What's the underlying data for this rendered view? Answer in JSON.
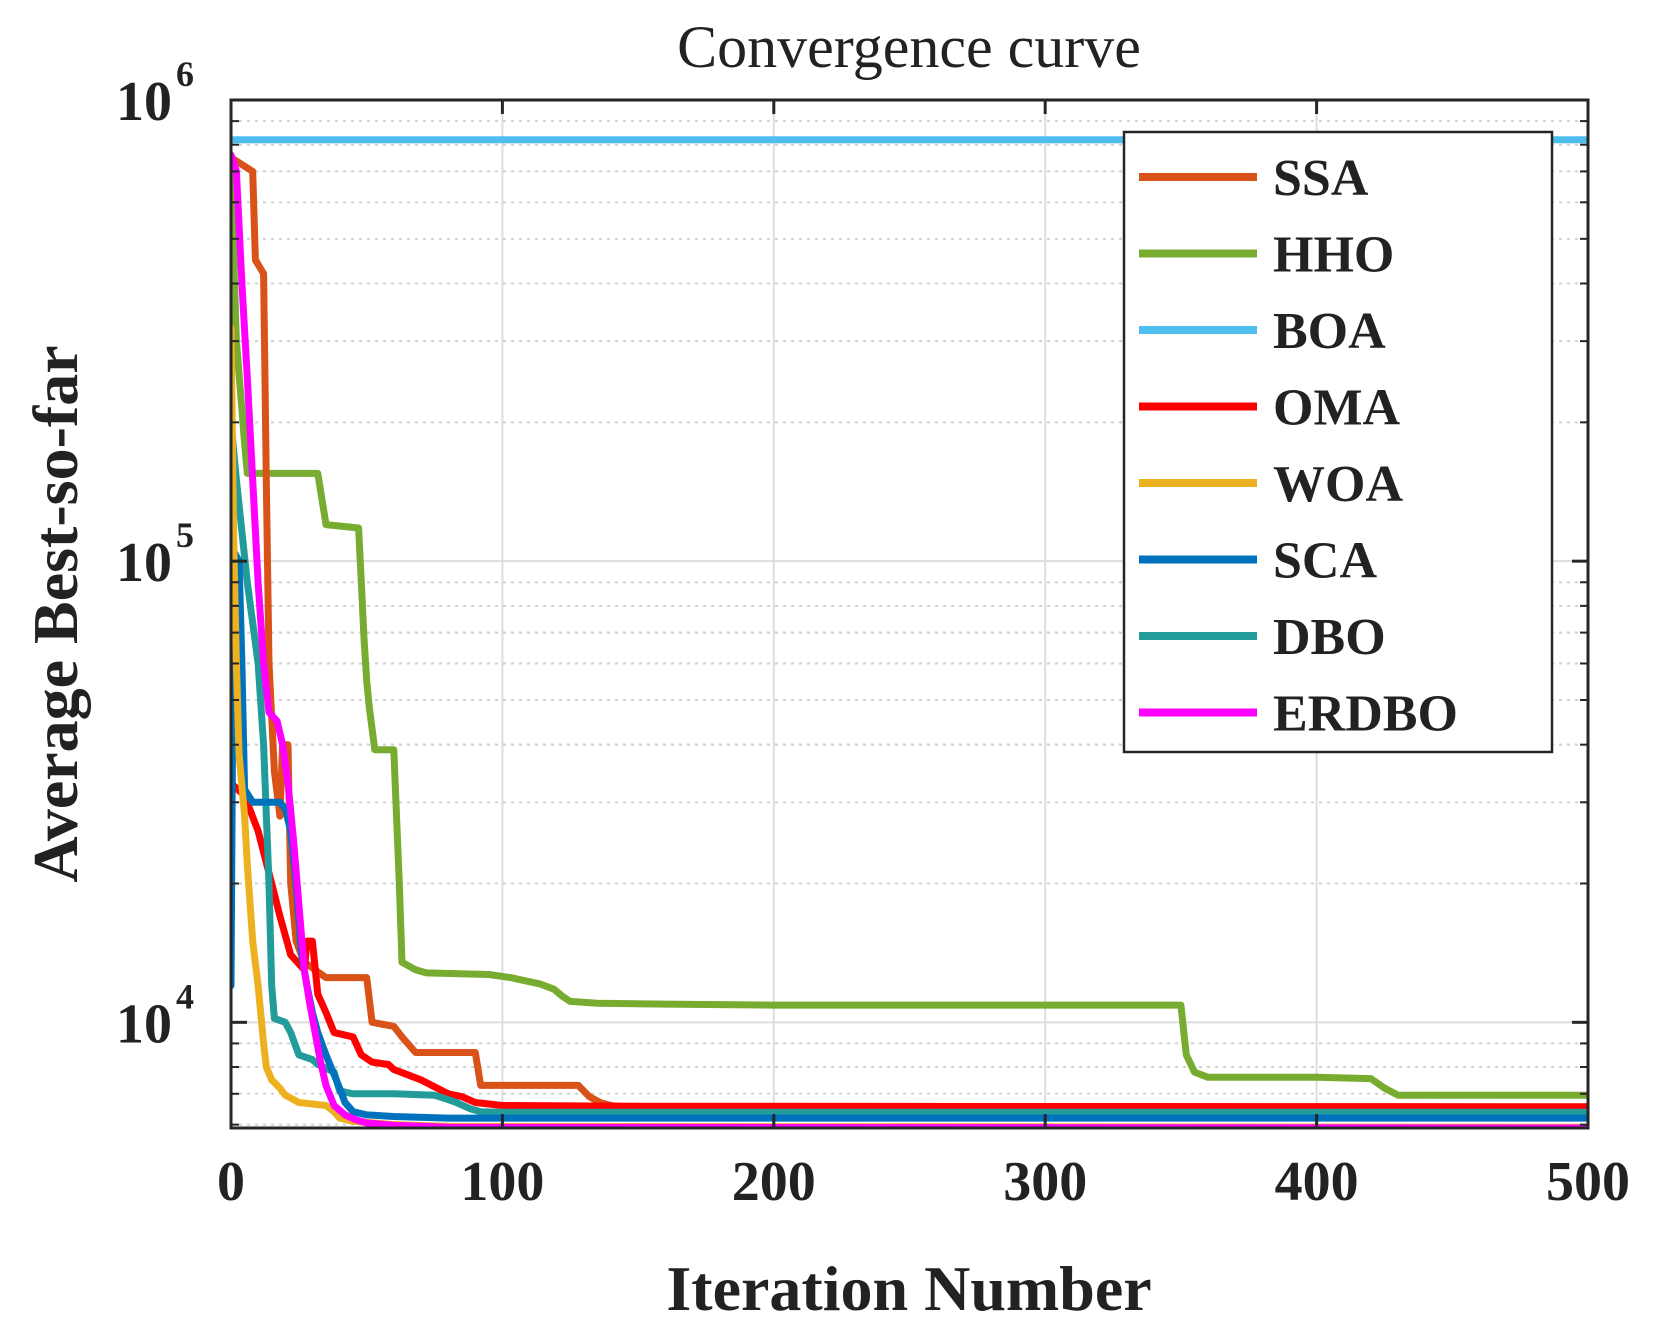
{
  "chart_data": {
    "type": "line",
    "title": "Convergence curve",
    "xlabel": "Iteration Number",
    "ylabel": "Average Best-so-far",
    "xlim": [
      0,
      500
    ],
    "ylim": [
      5900,
      1000000
    ],
    "yscale": "log",
    "grid": true,
    "legend_position": "top-right",
    "x_ticks": [
      0,
      100,
      200,
      300,
      400,
      500
    ],
    "x_tick_labels": [
      "0",
      "100",
      "200",
      "300",
      "400",
      "500"
    ],
    "y_ticks": [
      {
        "value": 10000,
        "base": "10",
        "exp": "4"
      },
      {
        "value": 100000,
        "base": "10",
        "exp": "5"
      },
      {
        "value": 1000000,
        "base": "10",
        "exp": "6"
      }
    ],
    "series": [
      {
        "name": "SSA",
        "color": "#d95319",
        "points": [
          [
            0,
            750000
          ],
          [
            8,
            700000
          ],
          [
            9,
            450000
          ],
          [
            12,
            420000
          ],
          [
            13,
            150000
          ],
          [
            14,
            60000
          ],
          [
            16,
            35000
          ],
          [
            18,
            28000
          ],
          [
            19,
            40000
          ],
          [
            21,
            40000
          ],
          [
            22,
            20000
          ],
          [
            24,
            15000
          ],
          [
            27,
            13500
          ],
          [
            35,
            12500
          ],
          [
            40,
            12500
          ],
          [
            50,
            12500
          ],
          [
            52,
            10000
          ],
          [
            60,
            9800
          ],
          [
            63,
            9300
          ],
          [
            68,
            8600
          ],
          [
            90,
            8600
          ],
          [
            92,
            7300
          ],
          [
            108,
            7300
          ],
          [
            128,
            7300
          ],
          [
            132,
            6900
          ],
          [
            136,
            6700
          ],
          [
            140,
            6600
          ],
          [
            145,
            6550
          ],
          [
            150,
            6500
          ]
        ]
      },
      {
        "name": "HHO",
        "color": "#77ac30",
        "points": [
          [
            0,
            700000
          ],
          [
            2,
            300000
          ],
          [
            5,
            180000
          ],
          [
            6,
            155000
          ],
          [
            32,
            155000
          ],
          [
            35,
            120000
          ],
          [
            47,
            118000
          ],
          [
            48,
            90000
          ],
          [
            49,
            68000
          ],
          [
            50,
            55000
          ],
          [
            51,
            48000
          ],
          [
            53,
            39000
          ],
          [
            60,
            39000
          ],
          [
            62,
            20000
          ],
          [
            63,
            13500
          ],
          [
            68,
            13000
          ],
          [
            72,
            12800
          ],
          [
            95,
            12700
          ],
          [
            103,
            12500
          ],
          [
            114,
            12100
          ],
          [
            119,
            11800
          ],
          [
            122,
            11400
          ],
          [
            125,
            11100
          ],
          [
            135,
            11000
          ],
          [
            160,
            10950
          ],
          [
            200,
            10900
          ],
          [
            300,
            10900
          ],
          [
            350,
            10900
          ],
          [
            352,
            8500
          ],
          [
            355,
            7800
          ],
          [
            360,
            7600
          ],
          [
            400,
            7600
          ],
          [
            420,
            7550
          ],
          [
            425,
            7200
          ],
          [
            430,
            6950
          ],
          [
            500,
            6950
          ]
        ]
      },
      {
        "name": "BOA",
        "color": "#4dbeee",
        "points": [
          [
            0,
            820000
          ],
          [
            500,
            820000
          ]
        ]
      },
      {
        "name": "OMA",
        "color": "#ff0000",
        "points": [
          [
            0,
            33000
          ],
          [
            5,
            31000
          ],
          [
            10,
            26000
          ],
          [
            15,
            20000
          ],
          [
            18,
            17000
          ],
          [
            22,
            14000
          ],
          [
            27,
            13000
          ],
          [
            28,
            15000
          ],
          [
            30,
            15000
          ],
          [
            32,
            11500
          ],
          [
            35,
            10500
          ],
          [
            38,
            9500
          ],
          [
            45,
            9300
          ],
          [
            48,
            8500
          ],
          [
            52,
            8200
          ],
          [
            58,
            8100
          ],
          [
            60,
            7900
          ],
          [
            65,
            7700
          ],
          [
            70,
            7500
          ],
          [
            80,
            7000
          ],
          [
            85,
            6900
          ],
          [
            90,
            6700
          ],
          [
            100,
            6600
          ],
          [
            150,
            6580
          ],
          [
            500,
            6560
          ]
        ]
      },
      {
        "name": "WOA",
        "color": "#edb120",
        "points": [
          [
            0,
            320000
          ],
          [
            1,
            110000
          ],
          [
            2,
            60000
          ],
          [
            3,
            38000
          ],
          [
            5,
            28000
          ],
          [
            6,
            22000
          ],
          [
            8,
            15000
          ],
          [
            10,
            12000
          ],
          [
            12,
            9000
          ],
          [
            13,
            8000
          ],
          [
            15,
            7500
          ],
          [
            18,
            7200
          ],
          [
            20,
            6950
          ],
          [
            25,
            6700
          ],
          [
            35,
            6600
          ],
          [
            38,
            6400
          ],
          [
            40,
            6200
          ],
          [
            45,
            6100
          ],
          [
            60,
            6000
          ],
          [
            80,
            5950
          ],
          [
            500,
            5920
          ]
        ]
      },
      {
        "name": "SCA",
        "color": "#0072bd",
        "points": [
          [
            0,
            12000
          ],
          [
            1,
            105000
          ],
          [
            3,
            100000
          ],
          [
            4,
            60000
          ],
          [
            5,
            32000
          ],
          [
            8,
            30000
          ],
          [
            18,
            30000
          ],
          [
            20,
            29000
          ],
          [
            22,
            26000
          ],
          [
            24,
            20000
          ],
          [
            26,
            14000
          ],
          [
            28,
            12000
          ],
          [
            30,
            10500
          ],
          [
            32,
            9500
          ],
          [
            35,
            8500
          ],
          [
            38,
            7700
          ],
          [
            40,
            7200
          ],
          [
            42,
            6700
          ],
          [
            45,
            6400
          ],
          [
            50,
            6300
          ],
          [
            60,
            6250
          ],
          [
            80,
            6200
          ],
          [
            500,
            6200
          ]
        ]
      },
      {
        "name": "DBO",
        "color": "#229b9b",
        "points": [
          [
            0,
            200000
          ],
          [
            2,
            150000
          ],
          [
            6,
            90000
          ],
          [
            10,
            60000
          ],
          [
            12,
            40000
          ],
          [
            14,
            20000
          ],
          [
            15,
            12000
          ],
          [
            16,
            10200
          ],
          [
            20,
            10000
          ],
          [
            22,
            9500
          ],
          [
            25,
            8500
          ],
          [
            30,
            8300
          ],
          [
            32,
            8100
          ],
          [
            38,
            7800
          ],
          [
            40,
            7100
          ],
          [
            45,
            7000
          ],
          [
            60,
            7000
          ],
          [
            75,
            6950
          ],
          [
            80,
            6800
          ],
          [
            83,
            6700
          ],
          [
            88,
            6500
          ],
          [
            92,
            6400
          ],
          [
            100,
            6380
          ],
          [
            500,
            6380
          ]
        ]
      },
      {
        "name": "ERDBO",
        "color": "#ff00ff",
        "points": [
          [
            0,
            760000
          ],
          [
            2,
            700000
          ],
          [
            4,
            400000
          ],
          [
            6,
            250000
          ],
          [
            8,
            150000
          ],
          [
            10,
            90000
          ],
          [
            12,
            60000
          ],
          [
            14,
            47000
          ],
          [
            17,
            45000
          ],
          [
            19,
            40000
          ],
          [
            21,
            33000
          ],
          [
            23,
            25000
          ],
          [
            25,
            18000
          ],
          [
            27,
            13000
          ],
          [
            29,
            11000
          ],
          [
            31,
            9500
          ],
          [
            33,
            8200
          ],
          [
            35,
            7300
          ],
          [
            38,
            6600
          ],
          [
            42,
            6300
          ],
          [
            46,
            6150
          ],
          [
            50,
            6050
          ],
          [
            60,
            5980
          ],
          [
            80,
            5920
          ],
          [
            500,
            5900
          ]
        ]
      }
    ]
  }
}
